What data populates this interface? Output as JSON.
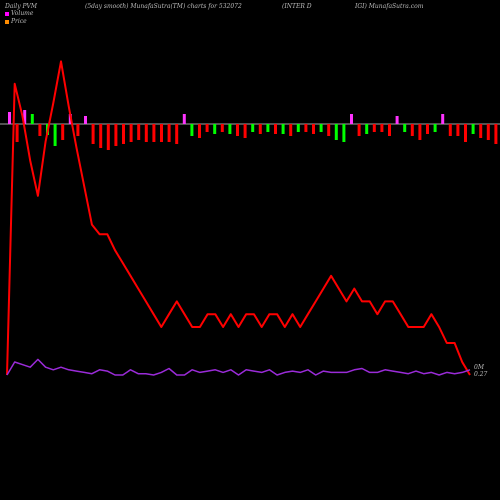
{
  "header": {
    "left": "Daily PVM",
    "center": "(5day smooth) MunafaSutra(TM) charts for 532072",
    "right_a": "(INTER D",
    "right_b": "IGI) MunafaSutra.com"
  },
  "legend": {
    "volume_label": "Volume",
    "price_label": "Price",
    "volume_color": "#ff00ff",
    "price_color": "#ff8c00"
  },
  "colors": {
    "background": "#000000",
    "price_line": "#ff0000",
    "volume_line": "#9a2bd8",
    "bar_up": "#00ff00",
    "bar_down": "#ff0000",
    "bar_neutral": "#ff33ff",
    "baseline": "#dddddd"
  },
  "chart_data": {
    "type": "line",
    "x": [
      1,
      2,
      3,
      4,
      5,
      6,
      7,
      8,
      9,
      10,
      11,
      12,
      13,
      14,
      15,
      16,
      17,
      18,
      19,
      20,
      21,
      22,
      23,
      24,
      25,
      26,
      27,
      28,
      29,
      30,
      31,
      32,
      33,
      34,
      35,
      36,
      37,
      38,
      39,
      40,
      41,
      42,
      43,
      44,
      45,
      46,
      47,
      48,
      49,
      50,
      51,
      52,
      53,
      54,
      55,
      56,
      57,
      58,
      59,
      60,
      61
    ],
    "series": [
      {
        "name": "Price",
        "values": [
          0.0,
          0.91,
          0.81,
          0.67,
          0.56,
          0.73,
          0.85,
          0.98,
          0.84,
          0.71,
          0.59,
          0.47,
          0.44,
          0.44,
          0.39,
          0.35,
          0.31,
          0.27,
          0.23,
          0.19,
          0.15,
          0.19,
          0.23,
          0.19,
          0.15,
          0.15,
          0.19,
          0.19,
          0.15,
          0.19,
          0.15,
          0.19,
          0.19,
          0.15,
          0.19,
          0.19,
          0.15,
          0.19,
          0.15,
          0.19,
          0.23,
          0.27,
          0.31,
          0.27,
          0.23,
          0.27,
          0.23,
          0.23,
          0.19,
          0.23,
          0.23,
          0.19,
          0.15,
          0.15,
          0.15,
          0.19,
          0.15,
          0.1,
          0.1,
          0.04,
          0.0
        ]
      },
      {
        "name": "Volume",
        "values": [
          0.0,
          0.05,
          0.04,
          0.03,
          0.06,
          0.03,
          0.02,
          0.03,
          0.02,
          0.015,
          0.01,
          0.005,
          0.02,
          0.015,
          0.0,
          0.0,
          0.02,
          0.005,
          0.005,
          0.0,
          0.01,
          0.025,
          0.0,
          0.0,
          0.02,
          0.01,
          0.015,
          0.02,
          0.01,
          0.02,
          0.0,
          0.02,
          0.015,
          0.01,
          0.02,
          0.0,
          0.01,
          0.015,
          0.01,
          0.02,
          0.0,
          0.015,
          0.01,
          0.01,
          0.01,
          0.02,
          0.025,
          0.01,
          0.01,
          0.02,
          0.015,
          0.01,
          0.005,
          0.015,
          0.005,
          0.01,
          0.0,
          0.01,
          0.005,
          0.01,
          0.02
        ]
      }
    ],
    "pvm_bars": [
      0.6,
      -0.9,
      0.7,
      0.5,
      -0.6,
      -0.55,
      -1.1,
      -0.8,
      0.5,
      -0.6,
      0.4,
      -1.0,
      -1.2,
      -1.3,
      -1.1,
      -1.0,
      -0.9,
      -0.8,
      -0.9,
      -0.9,
      -0.9,
      -0.9,
      -1.0,
      0.5,
      -0.6,
      -0.7,
      -0.4,
      -0.5,
      -0.4,
      -0.5,
      -0.6,
      -0.7,
      -0.4,
      -0.5,
      -0.4,
      -0.5,
      -0.5,
      -0.6,
      -0.4,
      -0.4,
      -0.5,
      -0.4,
      -0.6,
      -0.8,
      -0.9,
      0.5,
      -0.6,
      -0.5,
      -0.4,
      -0.4,
      -0.6,
      0.4,
      -0.4,
      -0.6,
      -0.8,
      -0.5,
      -0.4,
      0.5,
      -0.6,
      -0.6,
      -0.9,
      -0.5,
      -0.7,
      -0.8,
      -1.0
    ],
    "pvm_bar_kind": [
      "n",
      "d",
      "n",
      "u",
      "d",
      "u",
      "u",
      "d",
      "n",
      "d",
      "n",
      "d",
      "d",
      "d",
      "d",
      "d",
      "d",
      "d",
      "d",
      "d",
      "d",
      "d",
      "d",
      "n",
      "u",
      "d",
      "d",
      "u",
      "d",
      "u",
      "d",
      "d",
      "u",
      "d",
      "u",
      "d",
      "u",
      "d",
      "u",
      "d",
      "d",
      "u",
      "d",
      "u",
      "u",
      "n",
      "d",
      "u",
      "d",
      "d",
      "d",
      "n",
      "u",
      "d",
      "d",
      "d",
      "u",
      "n",
      "d",
      "d",
      "d",
      "u",
      "d",
      "d",
      "d"
    ],
    "end_label_line1": "0M",
    "end_label_line2": "0.27"
  }
}
